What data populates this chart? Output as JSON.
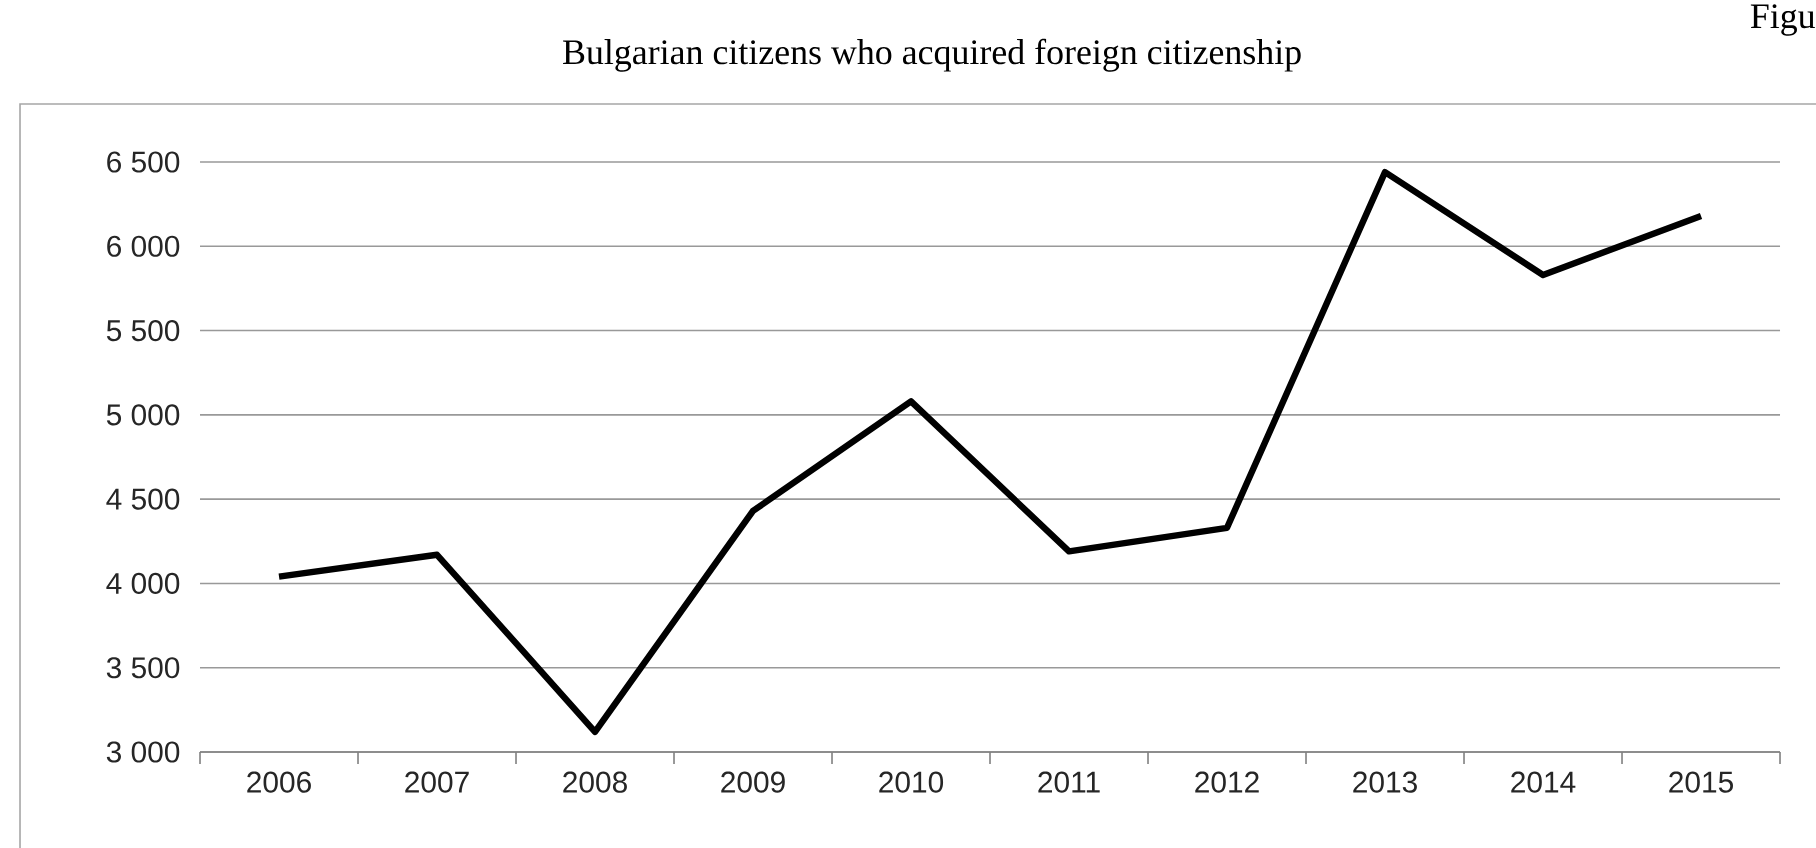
{
  "chart_data": {
    "type": "line",
    "title": "Bulgarian citizens who acquired foreign citizenship",
    "annotations": [
      "Figu"
    ],
    "categories": [
      "2006",
      "2007",
      "2008",
      "2009",
      "2010",
      "2011",
      "2012",
      "2013",
      "2014",
      "2015"
    ],
    "values": [
      4040,
      4170,
      3120,
      4430,
      5080,
      4190,
      4330,
      6440,
      5830,
      6180
    ],
    "color": "#000000",
    "ylim": [
      3000,
      6500
    ],
    "yticks": [
      {
        "value": 3000,
        "label": "3 000"
      },
      {
        "value": 3500,
        "label": "3 500"
      },
      {
        "value": 4000,
        "label": "4 000"
      },
      {
        "value": 4500,
        "label": "4 500"
      },
      {
        "value": 5000,
        "label": "5 000"
      },
      {
        "value": 5500,
        "label": "5 500"
      },
      {
        "value": 6000,
        "label": "6 000"
      },
      {
        "value": 6500,
        "label": "6 500"
      }
    ],
    "grid": "y"
  }
}
